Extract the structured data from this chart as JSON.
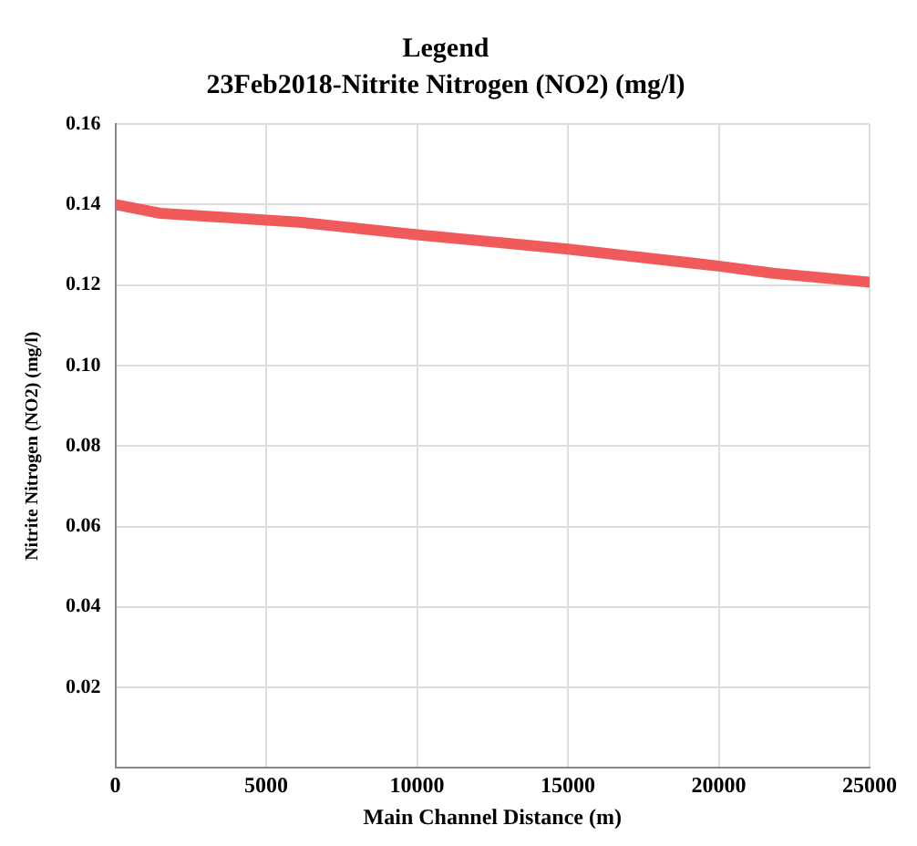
{
  "chart_data": {
    "type": "line",
    "title": "Legend",
    "subtitle": "23Feb2018-Nitrite Nitrogen (NO2) (mg/l)",
    "xlabel": "Main Channel Distance (m)",
    "ylabel": "Nitrite Nitrogen (NO2) (mg/l)",
    "x": [
      0,
      1500,
      3400,
      6100,
      10000,
      15000,
      20000,
      21800,
      25000
    ],
    "series": [
      {
        "color": "#f05a5a",
        "values": [
          0.14,
          0.1378,
          0.1369,
          0.1356,
          0.1325,
          0.1289,
          0.1247,
          0.1229,
          0.1207
        ]
      }
    ],
    "xlim": [
      0,
      25000
    ],
    "xticks": [
      0,
      5000,
      10000,
      15000,
      20000,
      25000
    ],
    "ylim": [
      0,
      0.16
    ],
    "yticks": [
      0.02,
      0.04,
      0.06,
      0.08,
      {
        "value": 0.1,
        "label": "0.10"
      },
      0.12,
      0.14,
      0.16
    ],
    "grid": true,
    "legend": false,
    "marker": "none",
    "line_style": "solid"
  }
}
